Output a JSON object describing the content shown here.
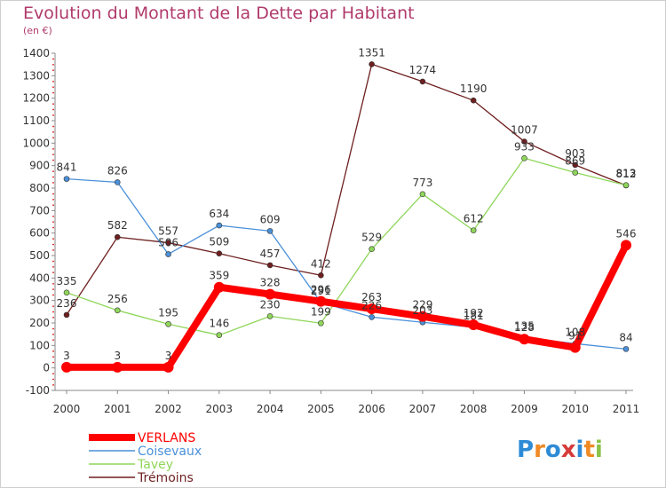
{
  "page": {
    "title": "Evolution du Montant de la Dette par Habitant",
    "subtitle": "(en €)",
    "logo": {
      "text": "Proxiti",
      "letters": [
        "P",
        "r",
        "o",
        "x",
        "i",
        "t",
        "i"
      ],
      "colors": [
        "#2e8bd6",
        "#f08a24",
        "#2e8bd6",
        "#d63b3b",
        "#2e8bd6",
        "#f08a24",
        "#8bc34a"
      ]
    }
  },
  "chart_data": {
    "type": "line",
    "x": [
      "2000",
      "2001",
      "2002",
      "2003",
      "2004",
      "2005",
      "2006",
      "2007",
      "2008",
      "2009",
      "2010",
      "2011"
    ],
    "ylim": [
      -100,
      1400
    ],
    "yticks": [
      "-100",
      "0",
      "100",
      "200",
      "300",
      "400",
      "500",
      "600",
      "700",
      "800",
      "900",
      "1000",
      "1100",
      "1200",
      "1300",
      "1400"
    ],
    "legend_position": "bottom-left",
    "grid": false,
    "series": [
      {
        "name": "Trémoins",
        "color": "#6e1f1f",
        "width": 1.3,
        "values": [
          236,
          582,
          557,
          509,
          457,
          412,
          1351,
          1274,
          1190,
          1007,
          903,
          812
        ],
        "labels": [
          "236",
          "582",
          "557",
          "509",
          "457",
          "412",
          "1351",
          "1274",
          "1190",
          "1007",
          "903",
          "812"
        ]
      },
      {
        "name": "Tavey",
        "color": "#8fd65a",
        "width": 1.3,
        "values": [
          335,
          256,
          195,
          146,
          230,
          199,
          529,
          773,
          612,
          933,
          869,
          813
        ],
        "labels": [
          "335",
          "256",
          "195",
          "146",
          "230",
          "199",
          "529",
          "773",
          "612",
          "933",
          "869",
          "813"
        ]
      },
      {
        "name": "Coisevaux",
        "color": "#4a90d9",
        "width": 1.3,
        "values": [
          841,
          826,
          506,
          634,
          609,
          291,
          226,
          203,
          181,
          135,
          108,
          84
        ],
        "labels": [
          "841",
          "826",
          "506",
          "634",
          "609",
          "291",
          "226",
          "203",
          "181",
          "135",
          "108",
          "84"
        ]
      },
      {
        "name": "VERLANS",
        "color": "#ff0000",
        "width": 8,
        "values": [
          3,
          3,
          3,
          359,
          328,
          296,
          263,
          229,
          192,
          128,
          91,
          546
        ],
        "labels": [
          "3",
          "3",
          "3",
          "359",
          "328",
          "296",
          "263",
          "229",
          "192",
          "128",
          "91",
          "546"
        ]
      }
    ]
  }
}
